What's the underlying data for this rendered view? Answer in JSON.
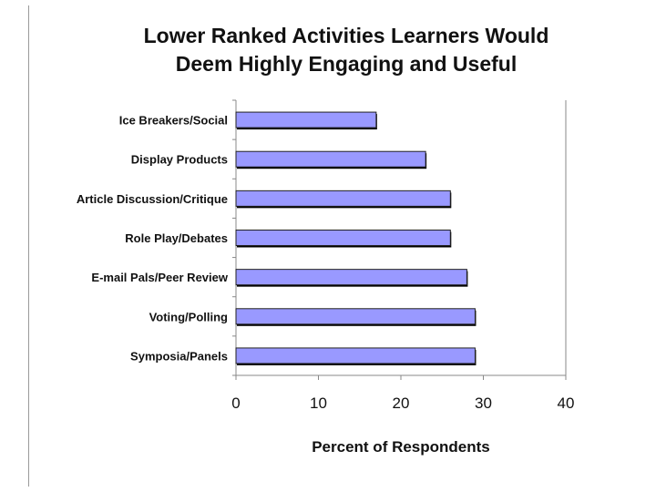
{
  "chart_data": {
    "type": "bar",
    "orientation": "horizontal",
    "title_lines": [
      "Lower Ranked Activities Learners Would",
      "Deem Highly Engaging and Useful"
    ],
    "categories": [
      "Ice Breakers/Social",
      "Display Products",
      "Article Discussion/Critique",
      "Role Play/Debates",
      "E-mail Pals/Peer Review",
      "Voting/Polling",
      "Symposia/Panels"
    ],
    "values": [
      17,
      23,
      26,
      26,
      28,
      29,
      29
    ],
    "xlabel": "Percent of Respondents",
    "ylabel": "",
    "xlim": [
      0,
      40
    ],
    "ticks": [
      "0",
      "10",
      "20",
      "30",
      "40"
    ],
    "grid": false,
    "bar_color": "#9999ff"
  }
}
